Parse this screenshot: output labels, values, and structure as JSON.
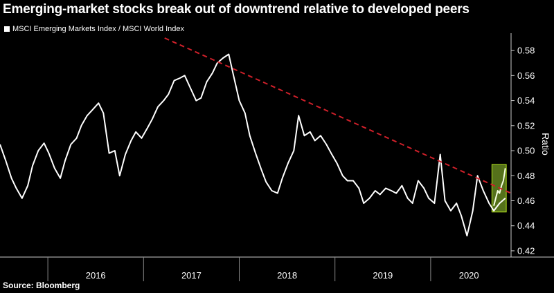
{
  "title": "Emerging-market stocks break out of downtrend relative to developed peers",
  "source": "Source: Bloomberg",
  "colors": {
    "background": "#000000",
    "series": "#ffffff",
    "trendline": "#d0202a",
    "highlight": "#9acd32"
  },
  "chart_data": {
    "type": "line",
    "legend": "MSCI Emerging Markets Index / MSCI World Index",
    "legend_position": "top-left",
    "ylabel": "Ratio",
    "yaxis_side": "right",
    "ylim": [
      0.415,
      0.59
    ],
    "yticks": [
      0.42,
      0.44,
      0.46,
      0.48,
      0.5,
      0.52,
      0.54,
      0.56,
      0.58
    ],
    "ytick_labels": [
      "0.42",
      "0.44",
      "0.46",
      "0.48",
      "0.50",
      "0.52",
      "0.54",
      "0.56",
      "0.58"
    ],
    "xlim": [
      2015.5,
      2020.84
    ],
    "year_labels": [
      "2016",
      "2017",
      "2018",
      "2019",
      "2020"
    ],
    "year_label_positions": [
      2016.5,
      2017.5,
      2018.5,
      2019.5,
      2020.4
    ],
    "grid": false,
    "series": [
      {
        "name": "MSCI Emerging Markets Index / MSCI World Index",
        "x": [
          2015.5,
          2015.56,
          2015.62,
          2015.67,
          2015.73,
          2015.79,
          2015.84,
          2015.9,
          2015.96,
          2016.01,
          2016.07,
          2016.13,
          2016.18,
          2016.24,
          2016.3,
          2016.35,
          2016.41,
          2016.47,
          2016.53,
          2016.58,
          2016.64,
          2016.7,
          2016.75,
          2016.81,
          2016.87,
          2016.92,
          2016.98,
          2017.04,
          2017.09,
          2017.15,
          2017.21,
          2017.26,
          2017.32,
          2017.38,
          2017.43,
          2017.49,
          2017.55,
          2017.6,
          2017.66,
          2017.72,
          2017.77,
          2017.83,
          2017.89,
          2017.94,
          2018.0,
          2018.06,
          2018.11,
          2018.17,
          2018.23,
          2018.28,
          2018.34,
          2018.4,
          2018.45,
          2018.51,
          2018.57,
          2018.62,
          2018.68,
          2018.74,
          2018.79,
          2018.85,
          2018.91,
          2018.96,
          2019.02,
          2019.08,
          2019.13,
          2019.19,
          2019.25,
          2019.3,
          2019.36,
          2019.42,
          2019.47,
          2019.53,
          2019.59,
          2019.64,
          2019.7,
          2019.76,
          2019.81,
          2019.87,
          2019.93,
          2019.98,
          2020.04,
          2020.1,
          2020.15,
          2020.21,
          2020.27,
          2020.32,
          2020.38,
          2020.44,
          2020.49,
          2020.55,
          2020.61,
          2020.66,
          2020.72,
          2020.78
        ],
        "values": [
          0.505,
          0.492,
          0.478,
          0.47,
          0.462,
          0.472,
          0.488,
          0.5,
          0.506,
          0.498,
          0.486,
          0.478,
          0.492,
          0.505,
          0.51,
          0.52,
          0.528,
          0.533,
          0.538,
          0.53,
          0.498,
          0.5,
          0.48,
          0.497,
          0.508,
          0.515,
          0.51,
          0.518,
          0.525,
          0.535,
          0.54,
          0.545,
          0.556,
          0.558,
          0.56,
          0.55,
          0.54,
          0.542,
          0.555,
          0.562,
          0.57,
          0.574,
          0.577,
          0.56,
          0.54,
          0.53,
          0.512,
          0.498,
          0.485,
          0.475,
          0.468,
          0.466,
          0.478,
          0.49,
          0.5,
          0.528,
          0.512,
          0.515,
          0.508,
          0.512,
          0.505,
          0.498,
          0.49,
          0.48,
          0.476,
          0.476,
          0.47,
          0.458,
          0.462,
          0.468,
          0.465,
          0.47,
          0.468,
          0.466,
          0.472,
          0.462,
          0.458,
          0.476,
          0.47,
          0.462,
          0.458,
          0.497,
          0.46,
          0.452,
          0.458,
          0.448,
          0.432,
          0.452,
          0.48,
          0.468,
          0.458,
          0.452,
          0.458,
          0.462
        ]
      },
      {
        "name": "Trend",
        "style": "dashed",
        "x": [
          2017.22,
          2020.84
        ],
        "values": [
          0.59,
          0.466
        ]
      },
      {
        "name": "Breakout",
        "x": [
          2020.66,
          2020.68,
          2020.7,
          2020.72,
          2020.74,
          2020.76,
          2020.78
        ],
        "values": [
          0.456,
          0.462,
          0.468,
          0.466,
          0.472,
          0.476,
          0.486
        ]
      }
    ],
    "highlight_box": {
      "x": [
        2020.64,
        2020.79
      ],
      "y": [
        0.451,
        0.489
      ]
    }
  }
}
